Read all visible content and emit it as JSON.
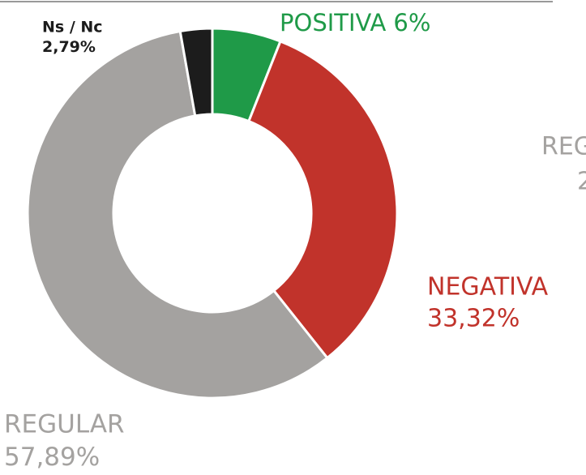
{
  "chart_data": {
    "type": "pie",
    "categories": [
      "POSITIVA",
      "NEGATIVA",
      "REGULAR",
      "Ns / Nc"
    ],
    "values": [
      6,
      33.32,
      57.89,
      2.79
    ],
    "value_labels": [
      "6%",
      "33,32%",
      "57,89%",
      "2,79%"
    ],
    "colors": [
      "#1f9a48",
      "#c1332b",
      "#a4a2a0",
      "#1c1c1c"
    ],
    "annotations": [
      "REG",
      "2"
    ]
  }
}
